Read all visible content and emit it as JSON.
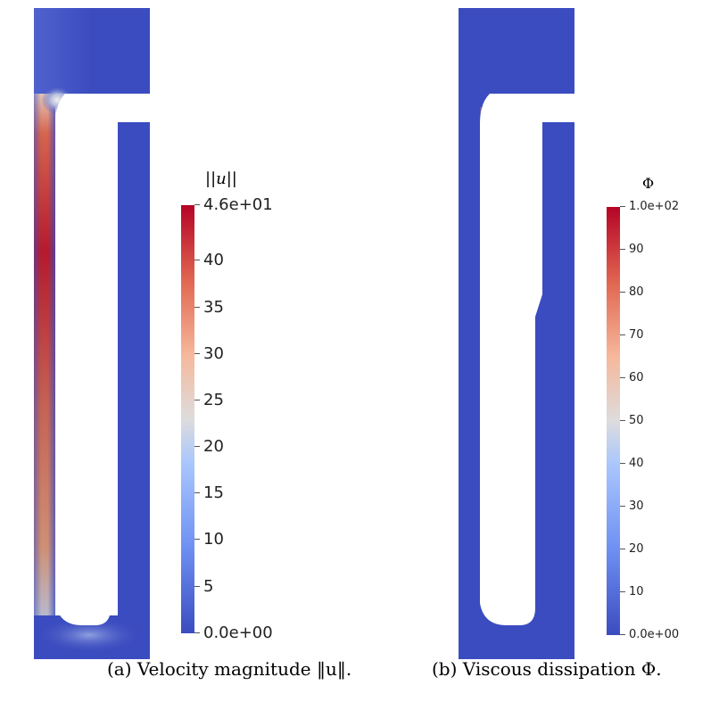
{
  "panels": [
    {
      "colorbar": {
        "title": "||u||",
        "ticks": [
          "4.6e+01",
          "40",
          "35",
          "30",
          "25",
          "20",
          "15",
          "10",
          "5",
          "0.0e+00"
        ],
        "tick_values": [
          46,
          40,
          35,
          30,
          25,
          20,
          15,
          10,
          5,
          0
        ],
        "range": [
          0,
          46
        ]
      },
      "caption": "(a) Velocity magnitude ‖u‖."
    },
    {
      "colorbar": {
        "title": "Φ",
        "ticks": [
          "1.0e+02",
          "90",
          "80",
          "70",
          "60",
          "50",
          "40",
          "30",
          "20",
          "10",
          "0.0e+00"
        ],
        "tick_values": [
          100,
          90,
          80,
          70,
          60,
          50,
          40,
          30,
          20,
          10,
          0
        ],
        "range": [
          0,
          100
        ]
      },
      "caption": "(b) Viscous dissipation Φ."
    }
  ],
  "colors": {
    "low": "#3a4cc0",
    "mid": "#dddddd",
    "high": "#b30326"
  }
}
